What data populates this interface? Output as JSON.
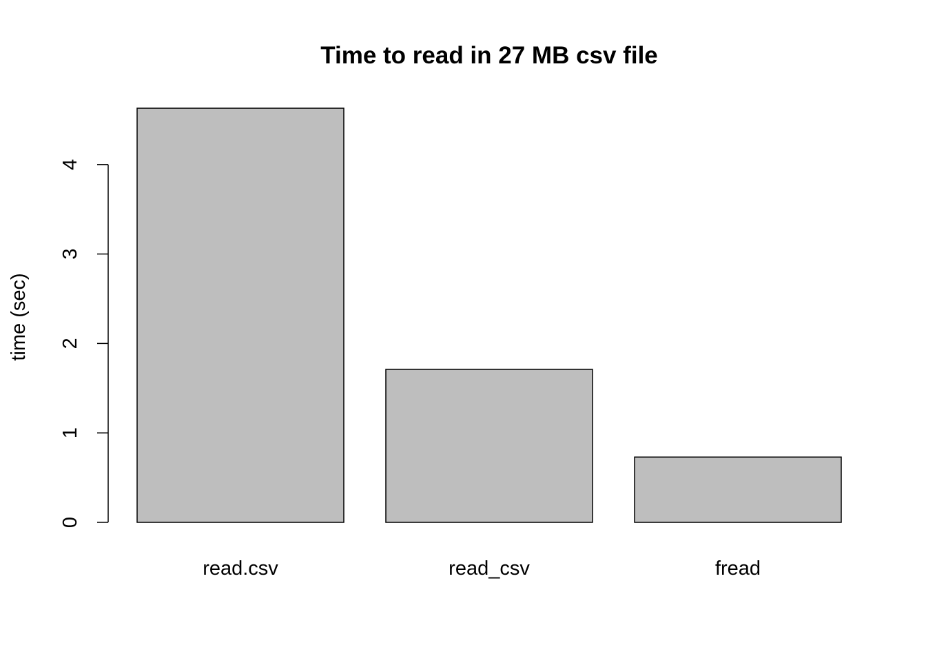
{
  "chart_data": {
    "type": "bar",
    "title": "Time to read in 27 MB csv file",
    "xlabel": "",
    "ylabel": "time (sec)",
    "categories": [
      "read.csv",
      "read_csv",
      "fread"
    ],
    "values": [
      4.63,
      1.71,
      0.73
    ],
    "ylim": [
      0,
      4.63
    ],
    "yticks": [
      0,
      1,
      2,
      3,
      4
    ],
    "bar_fill": "#bebebe",
    "bar_stroke": "#000000",
    "grid": false,
    "legend": "none"
  }
}
